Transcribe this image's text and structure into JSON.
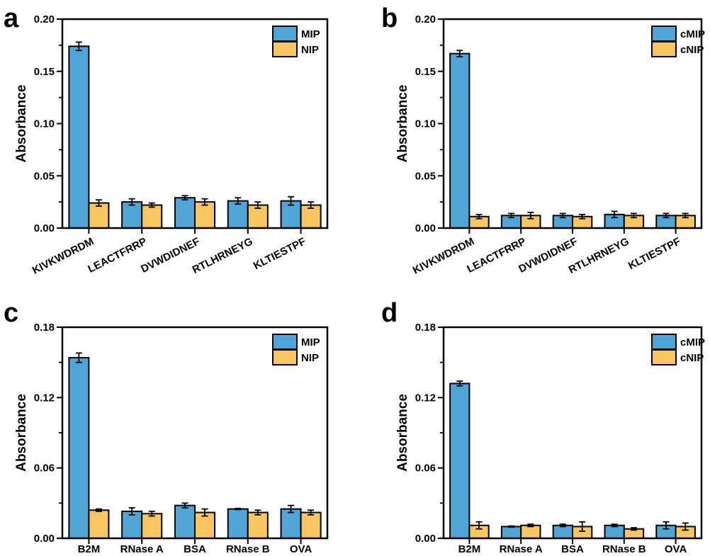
{
  "figure": {
    "background": "#ffffff",
    "axis_color": "#000000",
    "mip_color": "#4FA6D6",
    "nip_color": "#F7C660"
  },
  "chart_data": [
    {
      "type": "bar",
      "panel_label": "a",
      "ylabel": "Absorbance",
      "xlabel": "",
      "ylim": [
        0,
        0.2
      ],
      "yticks": [
        0,
        0.05,
        0.1,
        0.15,
        0.2
      ],
      "ytick_labels": [
        "0.00",
        "0.05",
        "0.10",
        "0.15",
        "0.20"
      ],
      "minor_ticks": true,
      "grid": false,
      "legend_position": "top-right-inside",
      "xtick_rotation": -27,
      "categories": [
        "KIVKWDRDM",
        "LEACTFRRP",
        "DVWDIDNEF",
        "RTLHRNEYG",
        "KLTIESTPF"
      ],
      "series": [
        {
          "name": "MIP",
          "color": "#4FA6D6",
          "values": [
            0.174,
            0.025,
            0.029,
            0.026,
            0.026
          ],
          "errors": [
            0.004,
            0.003,
            0.002,
            0.003,
            0.004
          ]
        },
        {
          "name": "NIP",
          "color": "#F7C660",
          "values": [
            0.024,
            0.022,
            0.025,
            0.022,
            0.022
          ],
          "errors": [
            0.003,
            0.002,
            0.003,
            0.003,
            0.003
          ]
        }
      ]
    },
    {
      "type": "bar",
      "panel_label": "b",
      "ylabel": "Absorbance",
      "xlabel": "",
      "ylim": [
        0,
        0.2
      ],
      "yticks": [
        0,
        0.05,
        0.1,
        0.15,
        0.2
      ],
      "ytick_labels": [
        "0.00",
        "0.05",
        "0.10",
        "0.15",
        "0.20"
      ],
      "minor_ticks": true,
      "grid": false,
      "legend_position": "top-right-inside",
      "xtick_rotation": -27,
      "categories": [
        "KIVKWDRDM",
        "LEACTFRRP",
        "DVWDIDNEF",
        "RTLHRNEYG",
        "KLTIESTPF"
      ],
      "series": [
        {
          "name": "cMIP",
          "color": "#4FA6D6",
          "values": [
            0.167,
            0.012,
            0.012,
            0.013,
            0.012
          ],
          "errors": [
            0.003,
            0.002,
            0.002,
            0.003,
            0.002
          ]
        },
        {
          "name": "cNIP",
          "color": "#F7C660",
          "values": [
            0.011,
            0.012,
            0.011,
            0.012,
            0.012
          ],
          "errors": [
            0.002,
            0.003,
            0.002,
            0.002,
            0.002
          ]
        }
      ]
    },
    {
      "type": "bar",
      "panel_label": "c",
      "ylabel": "Absorbance",
      "xlabel": "",
      "ylim": [
        0,
        0.18
      ],
      "yticks": [
        0,
        0.06,
        0.12,
        0.18
      ],
      "ytick_labels": [
        "0.00",
        "0.06",
        "0.12",
        "0.18"
      ],
      "minor_ticks": true,
      "grid": false,
      "legend_position": "top-right-inside",
      "xtick_rotation": 0,
      "categories": [
        "B2M",
        "RNase A",
        "BSA",
        "RNase B",
        "OVA"
      ],
      "series": [
        {
          "name": "MIP",
          "color": "#4FA6D6",
          "values": [
            0.154,
            0.023,
            0.028,
            0.025,
            0.025
          ],
          "errors": [
            0.004,
            0.003,
            0.002,
            0.0005,
            0.003
          ]
        },
        {
          "name": "NIP",
          "color": "#F7C660",
          "values": [
            0.024,
            0.021,
            0.022,
            0.022,
            0.022
          ],
          "errors": [
            0.001,
            0.002,
            0.003,
            0.002,
            0.002
          ]
        }
      ]
    },
    {
      "type": "bar",
      "panel_label": "d",
      "ylabel": "Absorbance",
      "xlabel": "",
      "ylim": [
        0,
        0.18
      ],
      "yticks": [
        0,
        0.06,
        0.12,
        0.18
      ],
      "ytick_labels": [
        "0.00",
        "0.06",
        "0.12",
        "0.18"
      ],
      "minor_ticks": true,
      "grid": false,
      "legend_position": "top-right-inside",
      "xtick_rotation": 0,
      "categories": [
        "B2M",
        "RNase A",
        "BSA",
        "RNase B",
        "OVA"
      ],
      "series": [
        {
          "name": "cMIP",
          "color": "#4FA6D6",
          "values": [
            0.132,
            0.01,
            0.011,
            0.011,
            0.011
          ],
          "errors": [
            0.002,
            0.0005,
            0.001,
            0.001,
            0.003
          ]
        },
        {
          "name": "cNIP",
          "color": "#F7C660",
          "values": [
            0.011,
            0.011,
            0.01,
            0.008,
            0.01
          ],
          "errors": [
            0.003,
            0.001,
            0.004,
            0.001,
            0.003
          ]
        }
      ]
    }
  ]
}
